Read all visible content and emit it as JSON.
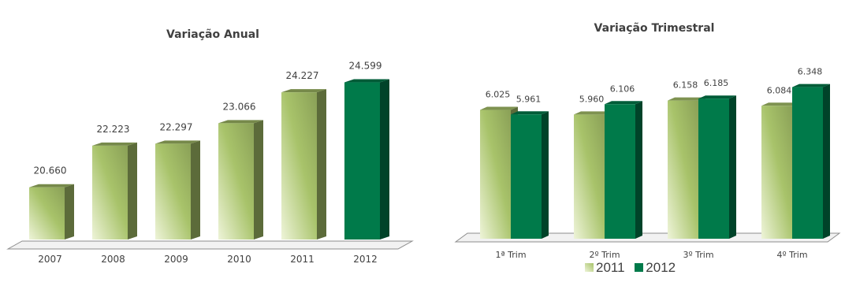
{
  "chart_data": [
    {
      "type": "bar",
      "title": "Variação Anual",
      "categories": [
        "2007",
        "2008",
        "2009",
        "2010",
        "2011",
        "2012"
      ],
      "values": [
        20660,
        22223,
        22297,
        23066,
        24227,
        24599
      ],
      "value_labels": [
        "20.660",
        "22.223",
        "22.297",
        "23.066",
        "24.227",
        "24.599"
      ],
      "ylim": [
        18700,
        25000
      ],
      "highlight_category": "2012",
      "colors": {
        "base": "#a8c36a",
        "light": "#eef4d8",
        "highlight": "#007a4a",
        "label": "#404040"
      }
    },
    {
      "type": "bar",
      "title": "Variação Trimestral",
      "categories": [
        "1ª Trim",
        "2º Trim",
        "3º Trim",
        "4º Trim"
      ],
      "series": [
        {
          "name": "2011",
          "values": [
            6025,
            5960,
            6158,
            6084
          ],
          "labels": [
            "6.025",
            "5.960",
            "6.158",
            "6.084"
          ],
          "color": "#a8c36a"
        },
        {
          "name": "2012",
          "values": [
            5961,
            6106,
            6185,
            6348
          ],
          "labels": [
            "5.961",
            "6.106",
            "6.185",
            "6.348"
          ],
          "color": "#007a4a"
        }
      ],
      "ylim": [
        4200,
        6500
      ],
      "legend_position": "bottom"
    }
  ]
}
